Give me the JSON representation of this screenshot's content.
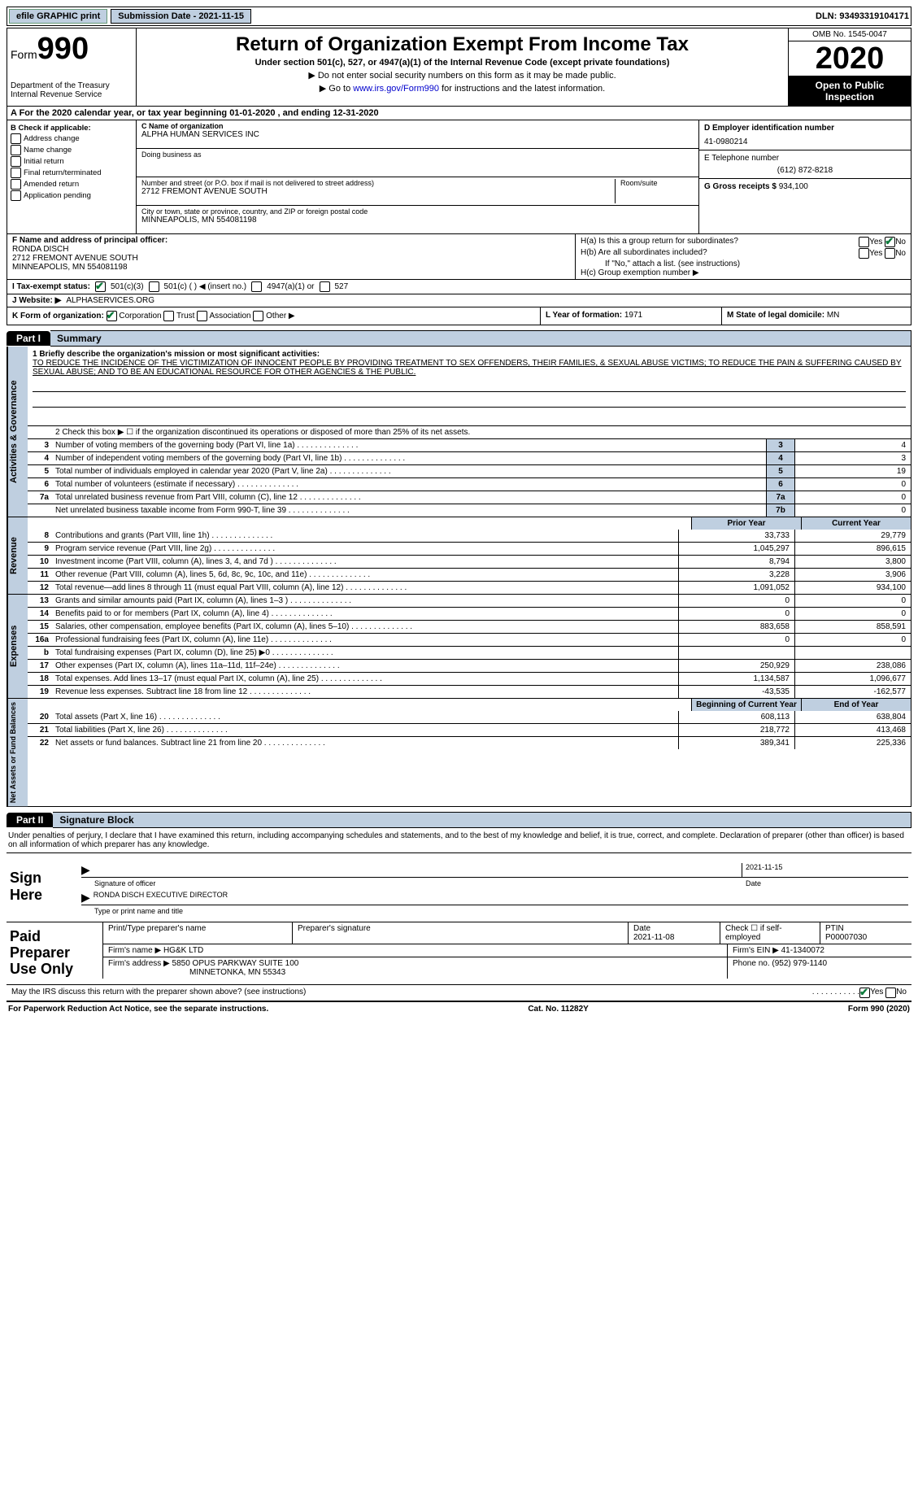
{
  "top": {
    "efile": "efile GRAPHIC print",
    "submission": "Submission Date - 2021-11-15",
    "dln": "DLN: 93493319104171"
  },
  "header": {
    "form_prefix": "Form",
    "form_num": "990",
    "dept": "Department of the Treasury\nInternal Revenue Service",
    "title": "Return of Organization Exempt From Income Tax",
    "sub": "Under section 501(c), 527, or 4947(a)(1) of the Internal Revenue Code (except private foundations)",
    "note1": "▶ Do not enter social security numbers on this form as it may be made public.",
    "note2_pre": "▶ Go to ",
    "note2_link": "www.irs.gov/Form990",
    "note2_post": " for instructions and the latest information.",
    "omb": "OMB No. 1545-0047",
    "year": "2020",
    "inspect": "Open to Public Inspection"
  },
  "row_a": "A  For the 2020 calendar year, or tax year beginning 01-01-2020   , and ending 12-31-2020",
  "b": {
    "title": "B Check if applicable:",
    "items": [
      "Address change",
      "Name change",
      "Initial return",
      "Final return/terminated",
      "Amended return",
      "Application pending"
    ]
  },
  "c": {
    "name_lbl": "C Name of organization",
    "name": "ALPHA HUMAN SERVICES INC",
    "dba_lbl": "Doing business as",
    "addr_lbl": "Number and street (or P.O. box if mail is not delivered to street address)",
    "addr": "2712 FREMONT AVENUE SOUTH",
    "room_lbl": "Room/suite",
    "city_lbl": "City or town, state or province, country, and ZIP or foreign postal code",
    "city": "MINNEAPOLIS, MN  554081198"
  },
  "d": {
    "ein_lbl": "D Employer identification number",
    "ein": "41-0980214",
    "phone_lbl": "E Telephone number",
    "phone": "(612) 872-8218",
    "receipts_lbl": "G Gross receipts $",
    "receipts": "934,100"
  },
  "f": {
    "lbl": "F  Name and address of principal officer:",
    "name": "RONDA DISCH",
    "addr1": "2712 FREMONT AVENUE SOUTH",
    "addr2": "MINNEAPOLIS, MN  554081198"
  },
  "h": {
    "a_lbl": "H(a)  Is this a group return for subordinates?",
    "b_lbl": "H(b)  Are all subordinates included?",
    "b_note": "If \"No,\" attach a list. (see instructions)",
    "c_lbl": "H(c)  Group exemption number ▶",
    "yes": "Yes",
    "no": "No"
  },
  "i": {
    "lbl": "I   Tax-exempt status:",
    "opts": [
      "501(c)(3)",
      "501(c) (  ) ◀ (insert no.)",
      "4947(a)(1) or",
      "527"
    ]
  },
  "j": {
    "lbl": "J   Website: ▶",
    "val": "ALPHASERVICES.ORG"
  },
  "k": {
    "lbl": "K Form of organization:",
    "opts": [
      "Corporation",
      "Trust",
      "Association",
      "Other ▶"
    ]
  },
  "l": {
    "lbl": "L Year of formation:",
    "val": "1971"
  },
  "m": {
    "lbl": "M State of legal domicile:",
    "val": "MN"
  },
  "part1": {
    "tab": "Part I",
    "title": "Summary",
    "side1": "Activities & Governance",
    "side2": "Revenue",
    "side3": "Expenses",
    "side4": "Net Assets or Fund Balances",
    "q1_lbl": "1  Briefly describe the organization's mission or most significant activities:",
    "q1_text": "TO REDUCE THE INCIDENCE OF THE VICTIMIZATION OF INNOCENT PEOPLE BY PROVIDING TREATMENT TO SEX OFFENDERS, THEIR FAMILIES, & SEXUAL ABUSE VICTIMS; TO REDUCE THE PAIN & SUFFERING CAUSED BY SEXUAL ABUSE; AND TO BE AN EDUCATIONAL RESOURCE FOR OTHER AGENCIES & THE PUBLIC.",
    "q2": "2   Check this box ▶ ☐ if the organization discontinued its operations or disposed of more than 25% of its net assets.",
    "rows_gov": [
      {
        "n": "3",
        "d": "Number of voting members of the governing body (Part VI, line 1a)",
        "bn": "3",
        "v": "4"
      },
      {
        "n": "4",
        "d": "Number of independent voting members of the governing body (Part VI, line 1b)",
        "bn": "4",
        "v": "3"
      },
      {
        "n": "5",
        "d": "Total number of individuals employed in calendar year 2020 (Part V, line 2a)",
        "bn": "5",
        "v": "19"
      },
      {
        "n": "6",
        "d": "Total number of volunteers (estimate if necessary)",
        "bn": "6",
        "v": "0"
      },
      {
        "n": "7a",
        "d": "Total unrelated business revenue from Part VIII, column (C), line 12",
        "bn": "7a",
        "v": "0"
      },
      {
        "n": "",
        "d": "Net unrelated business taxable income from Form 990-T, line 39",
        "bn": "7b",
        "v": "0"
      }
    ],
    "prior": "Prior Year",
    "current": "Current Year",
    "rows_rev": [
      {
        "n": "8",
        "d": "Contributions and grants (Part VIII, line 1h)",
        "p": "33,733",
        "c": "29,779"
      },
      {
        "n": "9",
        "d": "Program service revenue (Part VIII, line 2g)",
        "p": "1,045,297",
        "c": "896,615"
      },
      {
        "n": "10",
        "d": "Investment income (Part VIII, column (A), lines 3, 4, and 7d )",
        "p": "8,794",
        "c": "3,800"
      },
      {
        "n": "11",
        "d": "Other revenue (Part VIII, column (A), lines 5, 6d, 8c, 9c, 10c, and 11e)",
        "p": "3,228",
        "c": "3,906"
      },
      {
        "n": "12",
        "d": "Total revenue—add lines 8 through 11 (must equal Part VIII, column (A), line 12)",
        "p": "1,091,052",
        "c": "934,100"
      }
    ],
    "rows_exp": [
      {
        "n": "13",
        "d": "Grants and similar amounts paid (Part IX, column (A), lines 1–3 )",
        "p": "0",
        "c": "0"
      },
      {
        "n": "14",
        "d": "Benefits paid to or for members (Part IX, column (A), line 4)",
        "p": "0",
        "c": "0"
      },
      {
        "n": "15",
        "d": "Salaries, other compensation, employee benefits (Part IX, column (A), lines 5–10)",
        "p": "883,658",
        "c": "858,591"
      },
      {
        "n": "16a",
        "d": "Professional fundraising fees (Part IX, column (A), line 11e)",
        "p": "0",
        "c": "0"
      },
      {
        "n": "b",
        "d": "Total fundraising expenses (Part IX, column (D), line 25) ▶0",
        "p": "",
        "c": ""
      },
      {
        "n": "17",
        "d": "Other expenses (Part IX, column (A), lines 11a–11d, 11f–24e)",
        "p": "250,929",
        "c": "238,086"
      },
      {
        "n": "18",
        "d": "Total expenses. Add lines 13–17 (must equal Part IX, column (A), line 25)",
        "p": "1,134,587",
        "c": "1,096,677"
      },
      {
        "n": "19",
        "d": "Revenue less expenses. Subtract line 18 from line 12",
        "p": "-43,535",
        "c": "-162,577"
      }
    ],
    "begin": "Beginning of Current Year",
    "end": "End of Year",
    "rows_net": [
      {
        "n": "20",
        "d": "Total assets (Part X, line 16)",
        "p": "608,113",
        "c": "638,804"
      },
      {
        "n": "21",
        "d": "Total liabilities (Part X, line 26)",
        "p": "218,772",
        "c": "413,468"
      },
      {
        "n": "22",
        "d": "Net assets or fund balances. Subtract line 21 from line 20",
        "p": "389,341",
        "c": "225,336"
      }
    ]
  },
  "part2": {
    "tab": "Part II",
    "title": "Signature Block",
    "decl": "Under penalties of perjury, I declare that I have examined this return, including accompanying schedules and statements, and to the best of my knowledge and belief, it is true, correct, and complete. Declaration of preparer (other than officer) is based on all information of which preparer has any knowledge.",
    "sign_here": "Sign Here",
    "sig_of_officer": "Signature of officer",
    "date_lbl": "Date",
    "sig_date": "2021-11-15",
    "officer": "RONDA DISCH  EXECUTIVE DIRECTOR",
    "type_name": "Type or print name and title",
    "paid": "Paid Preparer Use Only",
    "print_lbl": "Print/Type preparer's name",
    "prep_sig_lbl": "Preparer's signature",
    "prep_date_lbl": "Date",
    "prep_date": "2021-11-08",
    "check_self": "Check ☐ if self-employed",
    "ptin_lbl": "PTIN",
    "ptin": "P00007030",
    "firm_name_lbl": "Firm's name    ▶",
    "firm_name": "HG&K LTD",
    "firm_ein_lbl": "Firm's EIN ▶",
    "firm_ein": "41-1340072",
    "firm_addr_lbl": "Firm's address ▶",
    "firm_addr": "5850 OPUS PARKWAY SUITE 100",
    "firm_city": "MINNETONKA, MN  55343",
    "firm_phone_lbl": "Phone no.",
    "firm_phone": "(952) 979-1140",
    "irs_discuss": "May the IRS discuss this return with the preparer shown above? (see instructions)"
  },
  "footer": {
    "pra": "For Paperwork Reduction Act Notice, see the separate instructions.",
    "cat": "Cat. No. 11282Y",
    "form": "Form 990 (2020)"
  }
}
